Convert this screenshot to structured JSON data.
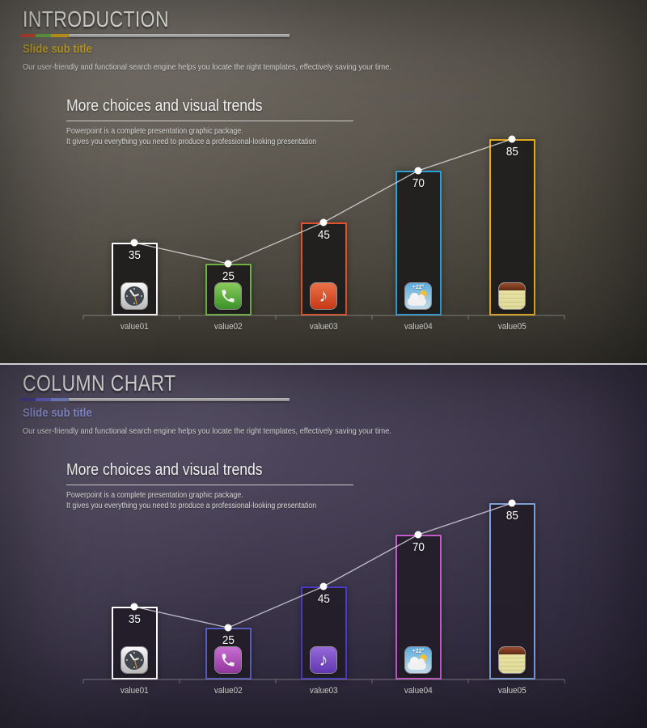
{
  "slides": [
    {
      "title": "INTRODUCTION",
      "subtitle": "Slide sub title",
      "description": "Our user-friendly and functional search engine helps you locate the right templates, effectively saving your time.",
      "section_heading": "More choices and visual trends",
      "section_lines": [
        "Powerpoint is a complete presentation graphic package.",
        "It gives you everything you need to produce a professional-looking presentation"
      ],
      "theme": {
        "accent_segments": [
          "#cc4a35",
          "#6cae4c",
          "#d5a81f"
        ],
        "subtitle_color": "#c7a42e"
      }
    },
    {
      "title": "COLUMN CHART",
      "subtitle": "Slide sub title",
      "description": "Our user-friendly and functional search engine helps you locate the right templates, effectively saving your time.",
      "section_heading": "More choices and visual trends",
      "section_lines": [
        "Powerpoint is a complete presentation graphic package.",
        "It gives you everything you need to produce a professional-looking presentation"
      ],
      "theme": {
        "accent_segments": [
          "#4a4392",
          "#6a63c6",
          "#7d8ad0"
        ],
        "subtitle_color": "#8e92d4"
      }
    }
  ],
  "chart_data": [
    {
      "type": "bar",
      "title": "",
      "categories": [
        "value01",
        "value02",
        "value03",
        "value04",
        "value05"
      ],
      "values": [
        35,
        25,
        45,
        70,
        85
      ],
      "line_overlay": true,
      "line_color": "#dcdcdc",
      "bar_fill": "#232120",
      "bars": [
        {
          "icon": "clock-icon",
          "border_color": "#ffffff"
        },
        {
          "icon": "phone-icon",
          "border_color": "#72b446",
          "icon_top": "#8ed05e",
          "icon_bottom": "#3f9e2d"
        },
        {
          "icon": "music-icon",
          "border_color": "#e0512d",
          "icon_top": "#f0764a",
          "icon_bottom": "#d63c1a"
        },
        {
          "icon": "weather-icon",
          "border_color": "#2e9fd4",
          "icon_text": "+22°"
        },
        {
          "icon": "notes-icon",
          "border_color": "#e2a91f"
        }
      ]
    },
    {
      "type": "bar",
      "title": "",
      "categories": [
        "value01",
        "value02",
        "value03",
        "value04",
        "value05"
      ],
      "values": [
        35,
        25,
        45,
        70,
        85
      ],
      "line_overlay": true,
      "line_color": "#d8d6e0",
      "bar_fill": "#241f2b",
      "bars": [
        {
          "icon": "clock-icon",
          "border_color": "#ffffff"
        },
        {
          "icon": "phone-icon",
          "border_color": "#5a60c0",
          "icon_top": "#cf72d8",
          "icon_bottom": "#9c3aa8"
        },
        {
          "icon": "music-icon",
          "border_color": "#4a3cc4",
          "icon_top": "#9a6ce0",
          "icon_bottom": "#6a3cbe"
        },
        {
          "icon": "weather-icon",
          "border_color": "#c45ac8",
          "icon_text": "+22°"
        },
        {
          "icon": "notes-icon",
          "border_color": "#7e9ed8"
        }
      ]
    }
  ]
}
